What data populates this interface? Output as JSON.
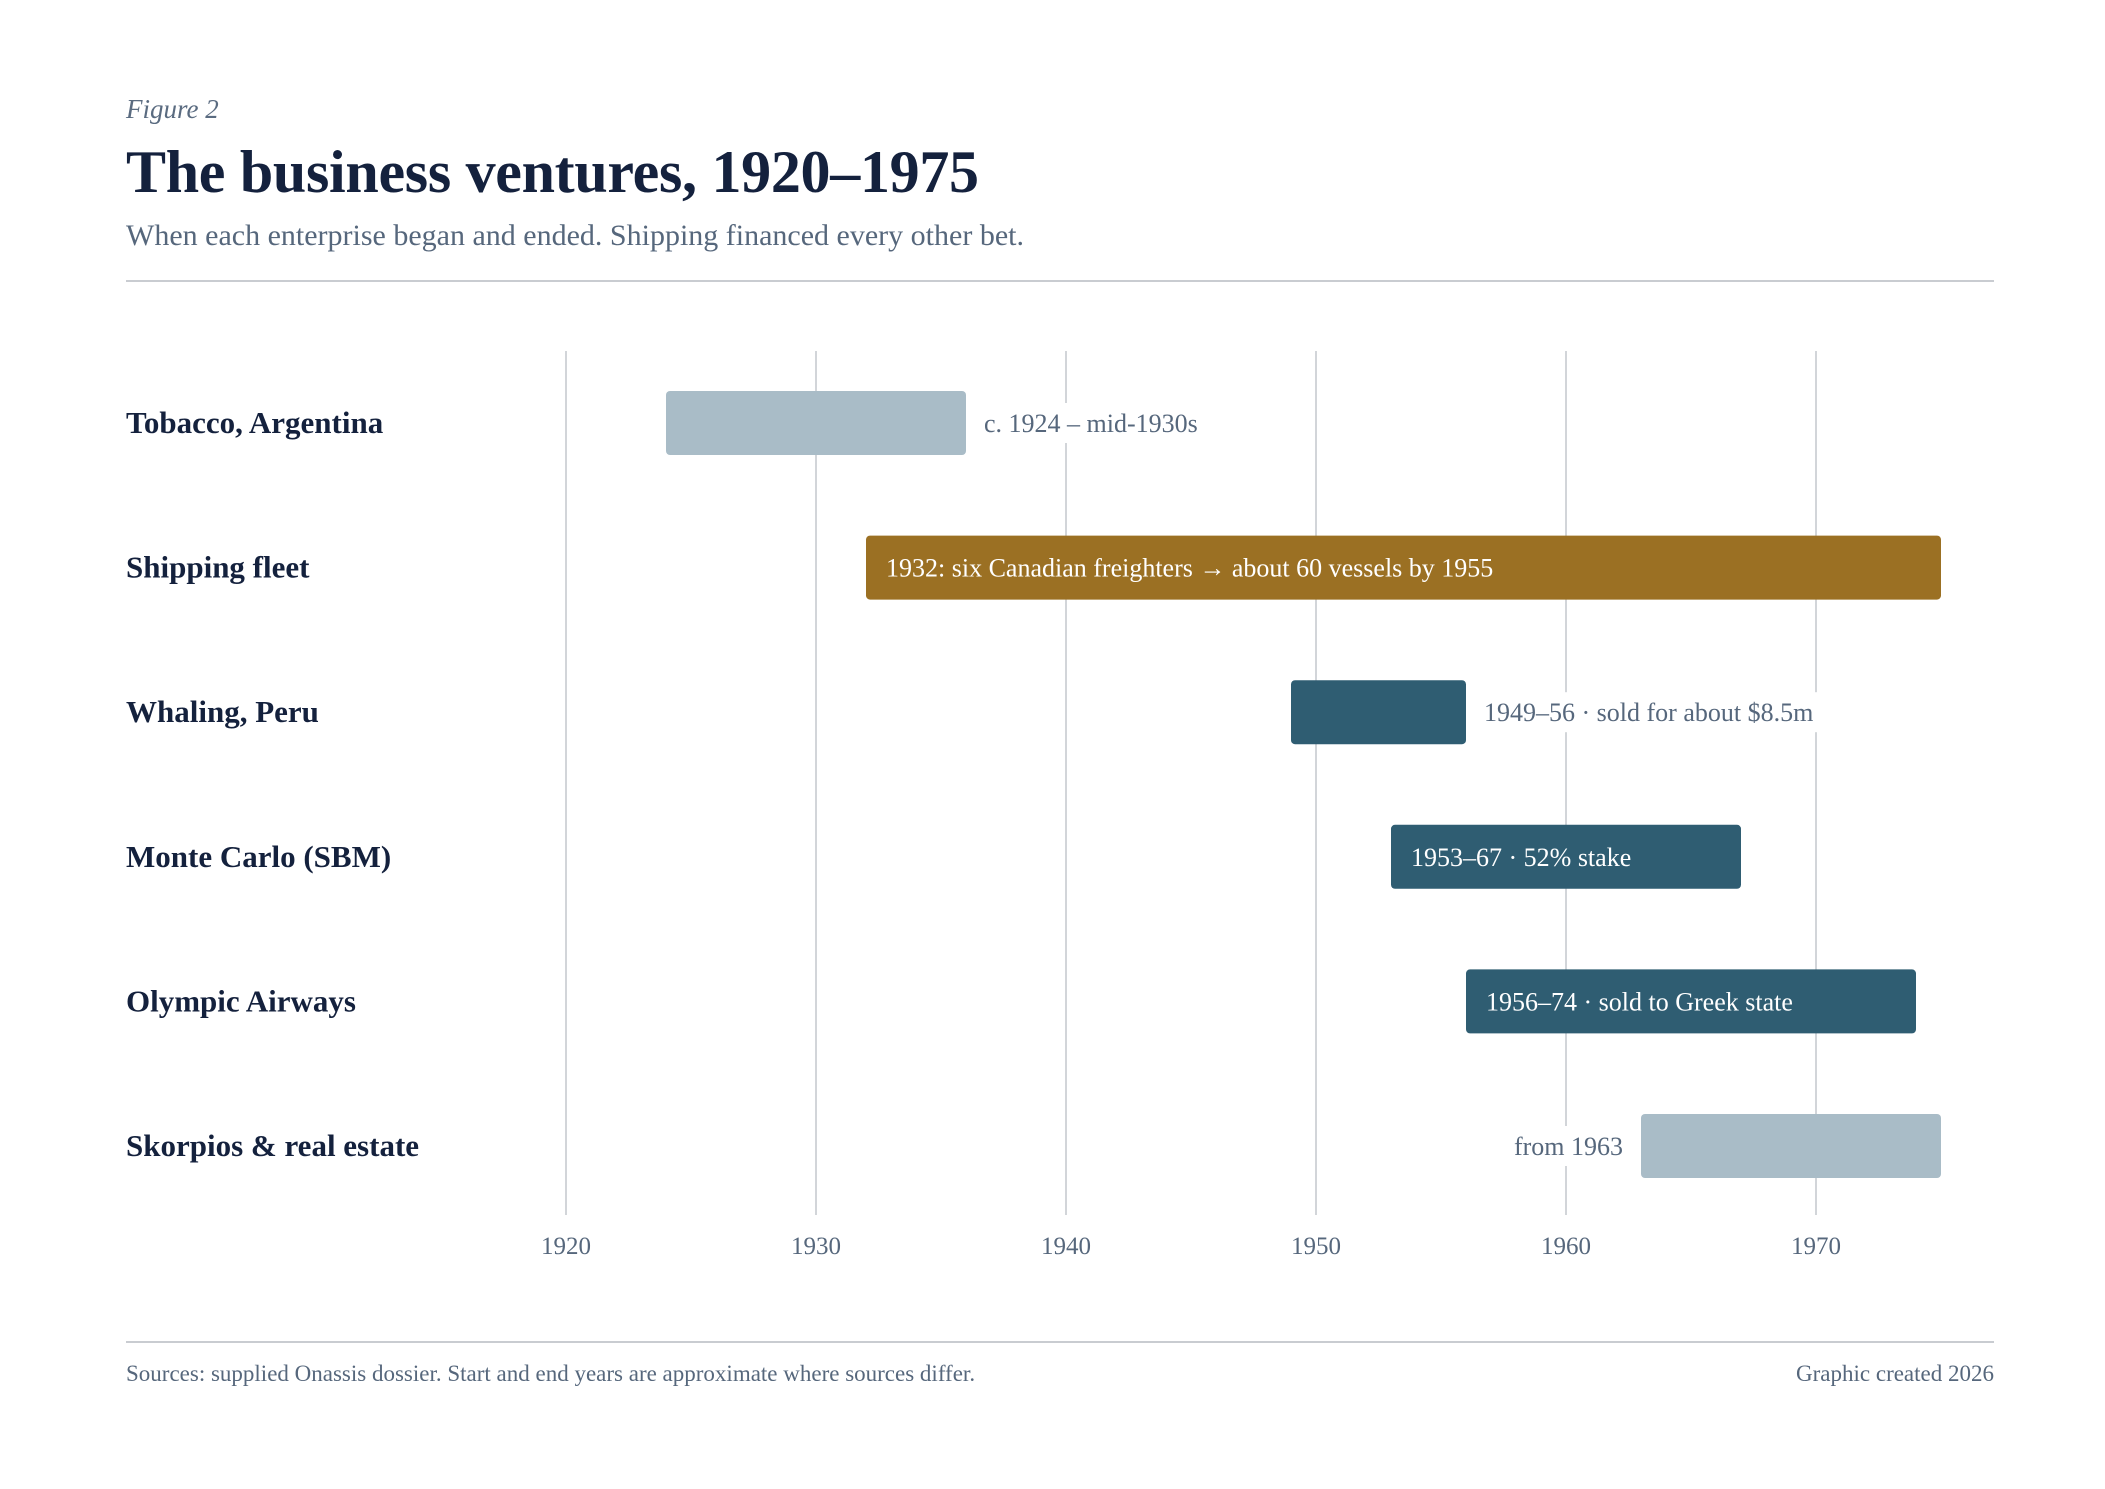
{
  "header": {
    "figure_label": "Figure 2",
    "title": "The business ventures, 1920–1975",
    "subtitle": "When each enterprise began and ended. Shipping financed every other bet."
  },
  "footer": {
    "sources": "Sources: supplied Onassis dossier. Start and end years are approximate where sources differ.",
    "credit": "Graphic created 2026"
  },
  "colors": {
    "muted": "#a9bcc7",
    "gold": "#9b7023",
    "teal": "#2f5d72",
    "grid": "#d2d5d9",
    "label_dark": "#14213d",
    "text_muted": "#56677c"
  },
  "chart_data": {
    "type": "gantt",
    "title": "The business ventures, 1920–1975",
    "xlim": [
      1920,
      1976
    ],
    "x_ticks": [
      1920,
      1930,
      1940,
      1950,
      1960,
      1970
    ],
    "grid": true,
    "rows": [
      {
        "name": "Tobacco, Argentina",
        "start": 1924,
        "end": 1936,
        "color": "muted",
        "label": "c. 1924 – mid-1930s",
        "label_pos": "after"
      },
      {
        "name": "Shipping fleet",
        "start": 1932,
        "end": 1975,
        "color": "gold",
        "label": "1932: six Canadian freighters → about 60 vessels by 1955",
        "label_pos": "inside"
      },
      {
        "name": "Whaling, Peru",
        "start": 1949,
        "end": 1956,
        "color": "teal",
        "label": "1949–56 · sold for about $8.5m",
        "label_pos": "after"
      },
      {
        "name": "Monte Carlo (SBM)",
        "start": 1953,
        "end": 1967,
        "color": "teal",
        "label": "1953–67 · 52% stake",
        "label_pos": "inside"
      },
      {
        "name": "Olympic Airways",
        "start": 1956,
        "end": 1974,
        "color": "teal",
        "label": "1956–74 · sold to Greek state",
        "label_pos": "inside"
      },
      {
        "name": "Skorpios & real estate",
        "start": 1963,
        "end": 1975,
        "color": "muted",
        "label": "from 1963",
        "label_pos": "before"
      }
    ]
  }
}
